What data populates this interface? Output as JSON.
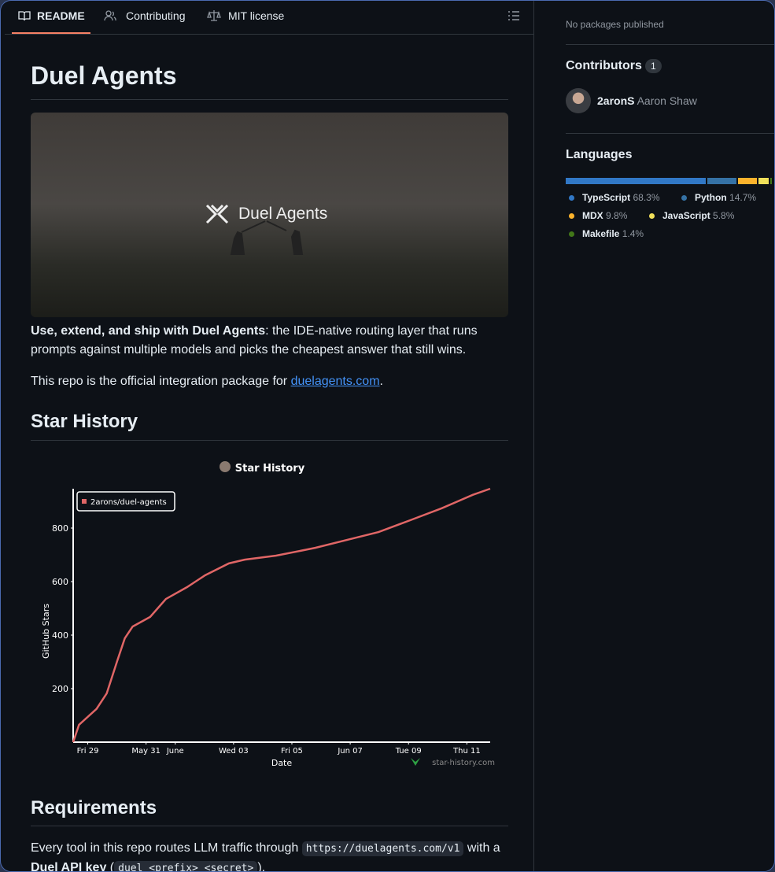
{
  "tabs": [
    "README",
    "Contributing",
    "MIT license"
  ],
  "readme": {
    "title": "Duel Agents",
    "banner_text": "Duel Agents",
    "intro": {
      "bold": "Use, extend, and ship with Duel Agents",
      "rest": ": the IDE-native routing layer that runs prompts against multiple models and picks the cheapest answer that still wins."
    },
    "integration": {
      "before": "This repo is the official integration package for ",
      "link": "duelagents.com",
      "after": "."
    },
    "star_history_heading": "Star History",
    "star_history_chart": {
      "type": "line",
      "title": "Star History",
      "xlabel": "Date",
      "ylabel": "GitHub Stars",
      "watermark": "star-history.com",
      "x": [
        -0.5,
        -0.3,
        0.3,
        0.65,
        1.0,
        1.27,
        1.54,
        2.14,
        2.68,
        3.4,
        4.03,
        4.84,
        5.38,
        6.46,
        7.8,
        8.9,
        9.97,
        11.05,
        12.14,
        13.2,
        13.8
      ],
      "series": [
        {
          "name": "2arons/duel-agents",
          "color": "#e06666",
          "values": [
            0,
            65,
            124,
            182,
            300,
            388,
            432,
            468,
            535,
            579,
            624,
            668,
            682,
            697,
            726,
            756,
            785,
            829,
            874,
            924,
            947
          ]
        }
      ],
      "xlim": [
        -0.5,
        13.8
      ],
      "ylim": [
        0,
        947
      ],
      "yticks": [
        200,
        400,
        600,
        800
      ],
      "xticks": [
        {
          "value": 0,
          "label": "Fri 29"
        },
        {
          "value": 2,
          "label": "May 31"
        },
        {
          "value": 3,
          "label": "June"
        },
        {
          "value": 5,
          "label": "Wed 03"
        },
        {
          "value": 7,
          "label": "Fri 05"
        },
        {
          "value": 9,
          "label": "Jun 07"
        },
        {
          "value": 11,
          "label": "Tue 09"
        },
        {
          "value": 13,
          "label": "Thu 11"
        }
      ]
    },
    "requirements_heading": "Requirements",
    "requirements": {
      "before": "Every tool in this repo routes LLM traffic through ",
      "code": "https://duelagents.com/v1",
      "middle": " with a",
      "bold": "Duel API key",
      "paren_open": " (",
      "code2": "duel <prefix> <secret>",
      "paren_close": ")."
    }
  },
  "sidebar": {
    "packages": "No packages published",
    "contributors_heading": "Contributors",
    "contributors_count": 1,
    "contributors": [
      {
        "login": "2aronS",
        "name": "Aaron Shaw"
      }
    ],
    "languages_heading": "Languages",
    "languages": {
      "names": [
        "TypeScript",
        "Python",
        "MDX",
        "JavaScript",
        "Makefile"
      ],
      "values": [
        68.3,
        14.7,
        9.8,
        5.8,
        1.4
      ],
      "value_labels": [
        "68.3%",
        "14.7%",
        "9.8%",
        "5.8%",
        "1.4%"
      ],
      "colors": [
        "#3178c6",
        "#3572a5",
        "#fcb32c",
        "#f1e05a",
        "#427819"
      ]
    }
  }
}
